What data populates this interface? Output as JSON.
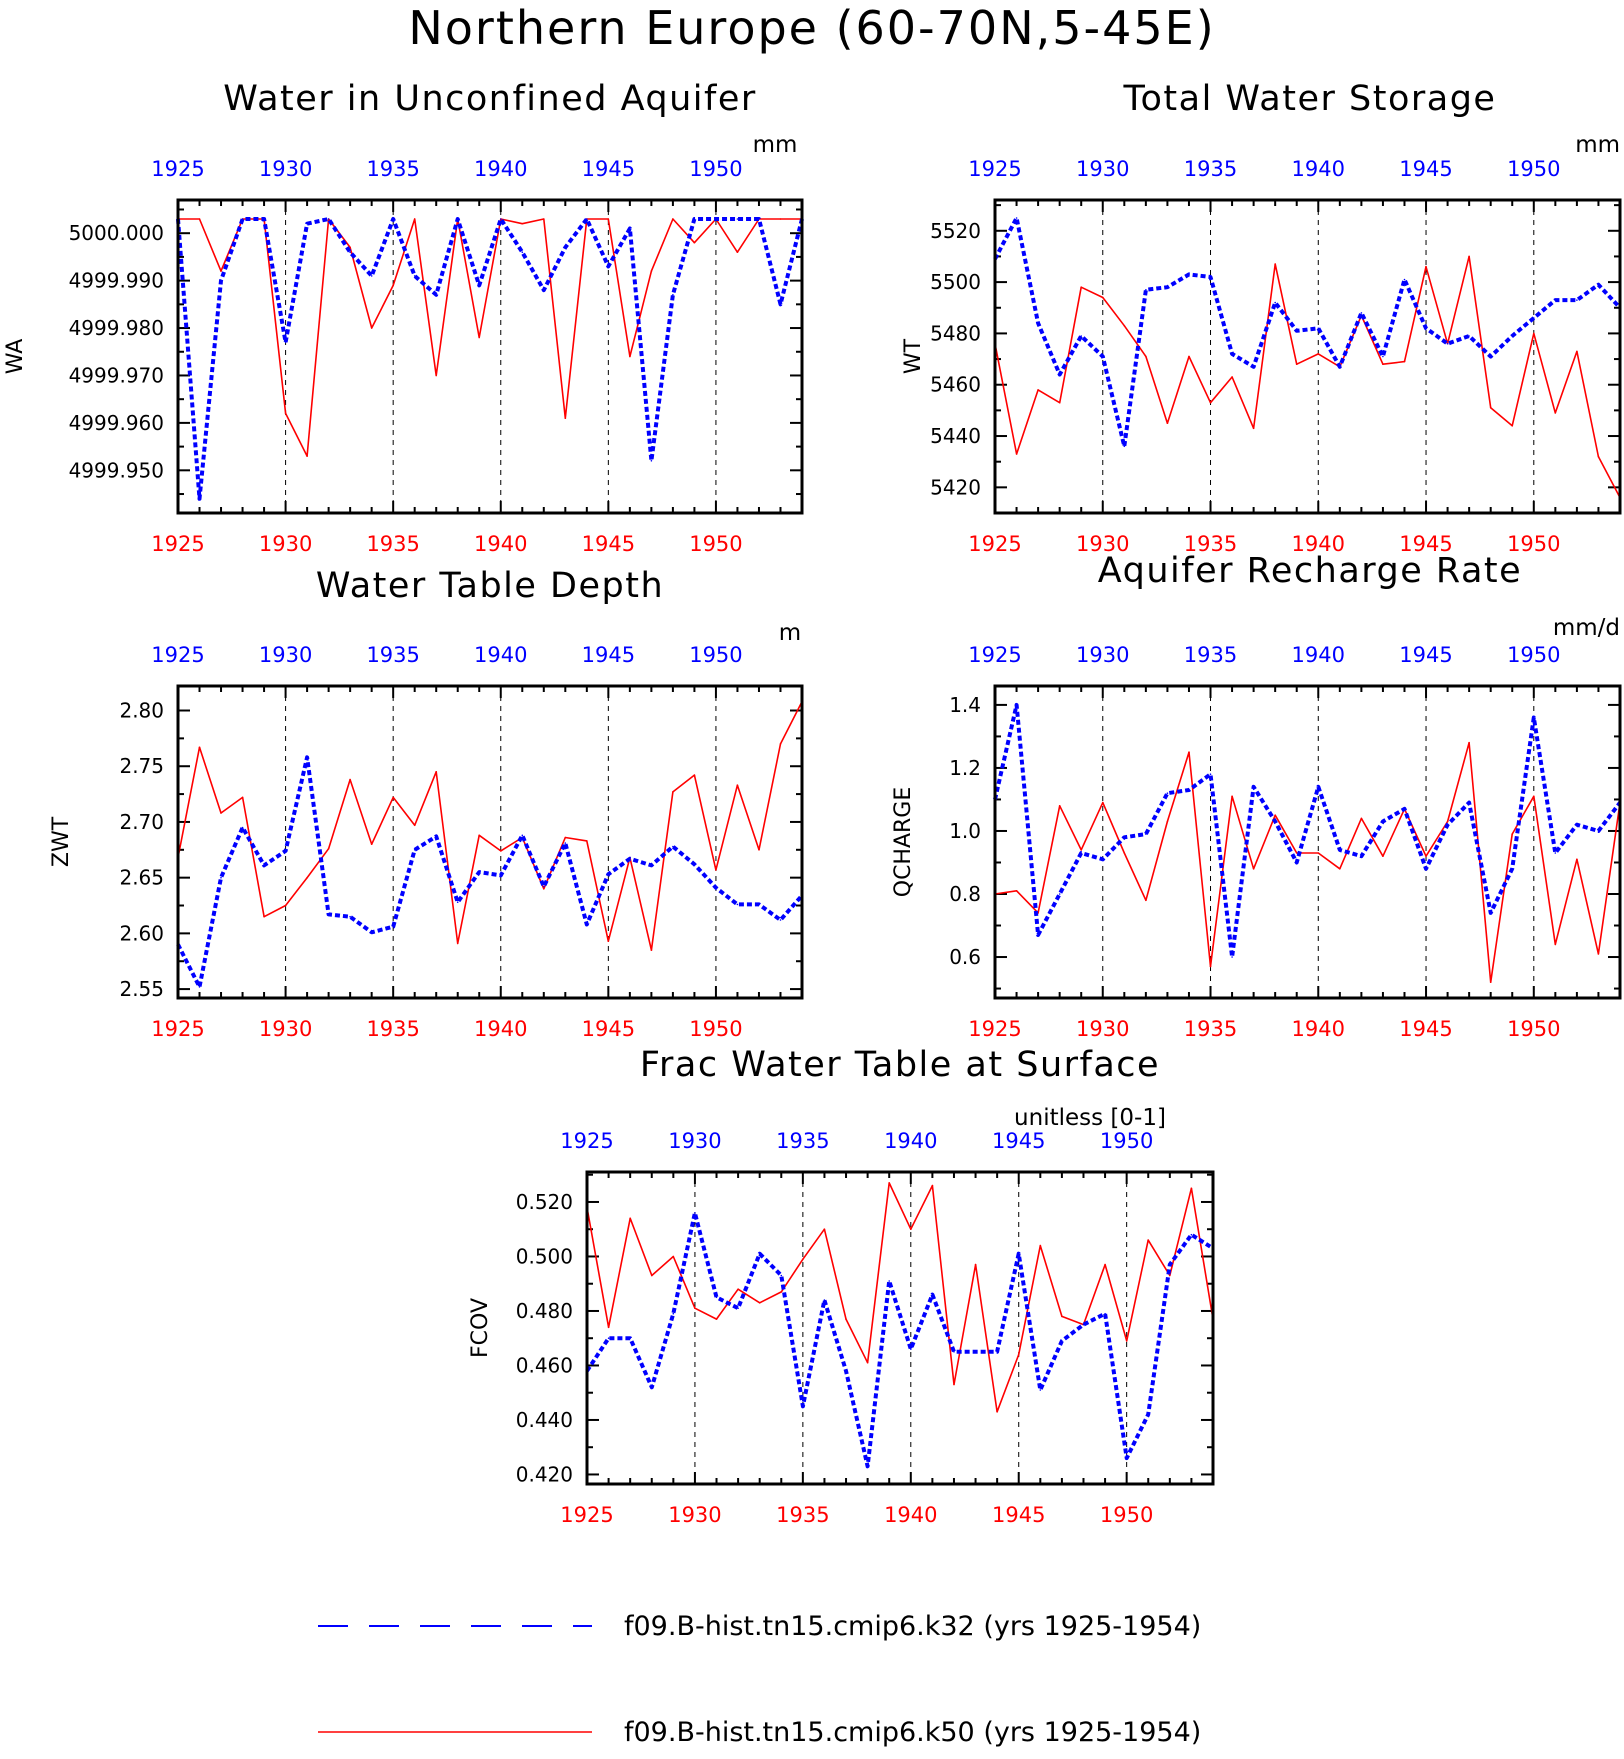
{
  "title": "Northern Europe (60-70N,5-45E)",
  "colors": {
    "k32": "#0000ff",
    "k50": "#ff0000",
    "axis": "#000000"
  },
  "legend": [
    {
      "key": "k32",
      "label": "f09.B-hist.tn15.cmip6.k32 (yrs 1925-1954)",
      "style": "dashed"
    },
    {
      "key": "k50",
      "label": "f09.B-hist.tn15.cmip6.k50 (yrs 1925-1954)",
      "style": "solid"
    }
  ],
  "chart_data": [
    {
      "id": "wa",
      "type": "line",
      "title": "Water in Unconfined Aquifer",
      "ylabel": "WA",
      "units": "mm",
      "top_axis_color": "blue",
      "bottom_axis_color": "red",
      "x": [
        1925,
        1926,
        1927,
        1928,
        1929,
        1930,
        1931,
        1932,
        1933,
        1934,
        1935,
        1936,
        1937,
        1938,
        1939,
        1940,
        1941,
        1942,
        1943,
        1944,
        1945,
        1946,
        1947,
        1948,
        1949,
        1950,
        1951,
        1952,
        1953,
        1954
      ],
      "xlim": [
        1925,
        1954
      ],
      "xticks": [
        1925,
        1930,
        1935,
        1940,
        1945,
        1950
      ],
      "ylim": [
        4999.941,
        5000.007
      ],
      "yticks": [
        4999.95,
        4999.96,
        4999.97,
        4999.98,
        4999.99,
        5000.0
      ],
      "ytick_labels": [
        "4999.950",
        "4999.960",
        "4999.970",
        "4999.980",
        "4999.990",
        "5000.000"
      ],
      "series": [
        {
          "key": "k50",
          "values": [
            5000.003,
            5000.003,
            4999.992,
            5000.003,
            5000.003,
            4999.962,
            4999.953,
            5000.003,
            4999.997,
            4999.98,
            4999.989,
            5000.003,
            4999.97,
            5000.003,
            4999.978,
            5000.003,
            5000.002,
            5000.003,
            4999.961,
            5000.003,
            5000.003,
            4999.974,
            4999.992,
            5000.003,
            4999.998,
            5000.003,
            4999.996,
            5000.003,
            5000.003,
            5000.003
          ]
        },
        {
          "key": "k32",
          "values": [
            5000.003,
            4999.944,
            4999.99,
            5000.003,
            5000.003,
            4999.977,
            5000.002,
            5000.003,
            4999.996,
            4999.991,
            5000.003,
            4999.991,
            4999.987,
            5000.003,
            4999.989,
            5000.003,
            4999.996,
            4999.988,
            4999.997,
            5000.003,
            4999.993,
            5000.001,
            4999.952,
            4999.987,
            5000.003,
            5000.003,
            5000.003,
            5000.003,
            4999.985,
            5000.003
          ]
        }
      ]
    },
    {
      "id": "wt",
      "type": "line",
      "title": "Total Water Storage",
      "ylabel": "WT",
      "units": "mm",
      "top_axis_color": "blue",
      "bottom_axis_color": "red",
      "x": [
        1925,
        1926,
        1927,
        1928,
        1929,
        1930,
        1931,
        1932,
        1933,
        1934,
        1935,
        1936,
        1937,
        1938,
        1939,
        1940,
        1941,
        1942,
        1943,
        1944,
        1945,
        1946,
        1947,
        1948,
        1949,
        1950,
        1951,
        1952,
        1953,
        1954
      ],
      "xlim": [
        1925,
        1954
      ],
      "xticks": [
        1925,
        1930,
        1935,
        1940,
        1945,
        1950
      ],
      "ylim": [
        5410,
        5532
      ],
      "yticks": [
        5420,
        5440,
        5460,
        5480,
        5500,
        5520
      ],
      "ytick_labels": [
        "5420",
        "5440",
        "5460",
        "5480",
        "5500",
        "5520"
      ],
      "series": [
        {
          "key": "k50",
          "values": [
            5476,
            5433,
            5458,
            5453,
            5498,
            5494,
            5483,
            5471,
            5445,
            5471,
            5453,
            5463,
            5443,
            5507,
            5468,
            5472,
            5467,
            5487,
            5468,
            5469,
            5506,
            5476,
            5510,
            5451,
            5444,
            5480,
            5449,
            5473,
            5432,
            5416
          ]
        },
        {
          "key": "k32",
          "values": [
            5509,
            5525,
            5484,
            5464,
            5479,
            5471,
            5436,
            5497,
            5498,
            5503,
            5502,
            5472,
            5467,
            5492,
            5481,
            5482,
            5467,
            5488,
            5471,
            5501,
            5482,
            5476,
            5479,
            5471,
            5479,
            5486,
            5493,
            5493,
            5499,
            5490
          ]
        }
      ]
    },
    {
      "id": "zwt",
      "type": "line",
      "title": "Water Table Depth",
      "ylabel": "ZWT",
      "units": "m",
      "top_axis_color": "blue",
      "bottom_axis_color": "red",
      "x": [
        1925,
        1926,
        1927,
        1928,
        1929,
        1930,
        1931,
        1932,
        1933,
        1934,
        1935,
        1936,
        1937,
        1938,
        1939,
        1940,
        1941,
        1942,
        1943,
        1944,
        1945,
        1946,
        1947,
        1948,
        1949,
        1950,
        1951,
        1952,
        1953,
        1954
      ],
      "xlim": [
        1925,
        1954
      ],
      "xticks": [
        1925,
        1930,
        1935,
        1940,
        1945,
        1950
      ],
      "ylim": [
        2.542,
        2.822
      ],
      "yticks": [
        2.55,
        2.6,
        2.65,
        2.7,
        2.75,
        2.8
      ],
      "ytick_labels": [
        "2.55",
        "2.60",
        "2.65",
        "2.70",
        "2.75",
        "2.80"
      ],
      "series": [
        {
          "key": "k50",
          "values": [
            2.668,
            2.767,
            2.708,
            2.722,
            2.615,
            2.625,
            2.65,
            2.676,
            2.738,
            2.68,
            2.722,
            2.697,
            2.745,
            2.591,
            2.688,
            2.674,
            2.686,
            2.64,
            2.686,
            2.683,
            2.593,
            2.668,
            2.585,
            2.727,
            2.742,
            2.657,
            2.733,
            2.675,
            2.77,
            2.808
          ]
        },
        {
          "key": "k32",
          "values": [
            2.59,
            2.552,
            2.65,
            2.695,
            2.661,
            2.674,
            2.758,
            2.617,
            2.615,
            2.601,
            2.606,
            2.675,
            2.687,
            2.628,
            2.655,
            2.652,
            2.688,
            2.642,
            2.681,
            2.608,
            2.653,
            2.667,
            2.661,
            2.678,
            2.662,
            2.641,
            2.626,
            2.626,
            2.612,
            2.634
          ]
        }
      ]
    },
    {
      "id": "qcharge",
      "type": "line",
      "title": "Aquifer Recharge Rate",
      "ylabel": "QCHARGE",
      "units": "mm/d",
      "top_axis_color": "blue",
      "bottom_axis_color": "red",
      "x": [
        1925,
        1926,
        1927,
        1928,
        1929,
        1930,
        1931,
        1932,
        1933,
        1934,
        1935,
        1936,
        1937,
        1938,
        1939,
        1940,
        1941,
        1942,
        1943,
        1944,
        1945,
        1946,
        1947,
        1948,
        1949,
        1950,
        1951,
        1952,
        1953,
        1954
      ],
      "xlim": [
        1925,
        1954
      ],
      "xticks": [
        1925,
        1930,
        1935,
        1940,
        1945,
        1950
      ],
      "ylim": [
        0.47,
        1.46
      ],
      "yticks": [
        0.6,
        0.8,
        1.0,
        1.2,
        1.4
      ],
      "ytick_labels": [
        "0.6",
        "0.8",
        "1.0",
        "1.2",
        "1.4"
      ],
      "series": [
        {
          "key": "k50",
          "values": [
            0.8,
            0.81,
            0.74,
            1.08,
            0.94,
            1.09,
            0.93,
            0.78,
            1.03,
            1.25,
            0.57,
            1.11,
            0.88,
            1.05,
            0.93,
            0.93,
            0.88,
            1.04,
            0.92,
            1.07,
            0.92,
            1.03,
            1.28,
            0.52,
            0.99,
            1.11,
            0.64,
            0.91,
            0.61,
            1.09
          ]
        },
        {
          "key": "k32",
          "values": [
            1.1,
            1.4,
            0.67,
            0.8,
            0.93,
            0.91,
            0.98,
            0.99,
            1.12,
            1.13,
            1.18,
            0.6,
            1.14,
            1.03,
            0.9,
            1.14,
            0.94,
            0.92,
            1.03,
            1.07,
            0.88,
            1.02,
            1.09,
            0.74,
            0.88,
            1.36,
            0.93,
            1.02,
            1.0,
            1.09
          ]
        }
      ]
    },
    {
      "id": "fcov",
      "type": "line",
      "title": "Frac Water Table at Surface",
      "ylabel": "FCOV",
      "units": "unitless [0-1]",
      "top_axis_color": "blue",
      "bottom_axis_color": "red",
      "x": [
        1925,
        1926,
        1927,
        1928,
        1929,
        1930,
        1931,
        1932,
        1933,
        1934,
        1935,
        1936,
        1937,
        1938,
        1939,
        1940,
        1941,
        1942,
        1943,
        1944,
        1945,
        1946,
        1947,
        1948,
        1949,
        1950,
        1951,
        1952,
        1953,
        1954
      ],
      "xlim": [
        1925,
        1954
      ],
      "xticks": [
        1925,
        1930,
        1935,
        1940,
        1945,
        1950
      ],
      "ylim": [
        0.4165,
        0.531
      ],
      "yticks": [
        0.42,
        0.44,
        0.46,
        0.48,
        0.5,
        0.52
      ],
      "ytick_labels": [
        "0.420",
        "0.440",
        "0.460",
        "0.480",
        "0.500",
        "0.520"
      ],
      "series": [
        {
          "key": "k50",
          "values": [
            0.518,
            0.474,
            0.514,
            0.493,
            0.5,
            0.481,
            0.477,
            0.488,
            0.483,
            0.487,
            0.499,
            0.51,
            0.477,
            0.461,
            0.527,
            0.51,
            0.526,
            0.453,
            0.497,
            0.443,
            0.464,
            0.504,
            0.478,
            0.475,
            0.497,
            0.469,
            0.506,
            0.493,
            0.525,
            0.477
          ]
        },
        {
          "key": "k32",
          "values": [
            0.458,
            0.47,
            0.47,
            0.452,
            0.479,
            0.516,
            0.485,
            0.481,
            0.501,
            0.493,
            0.445,
            0.484,
            0.458,
            0.423,
            0.491,
            0.466,
            0.486,
            0.465,
            0.465,
            0.465,
            0.501,
            0.451,
            0.469,
            0.475,
            0.479,
            0.426,
            0.442,
            0.497,
            0.508,
            0.503
          ]
        }
      ]
    }
  ]
}
